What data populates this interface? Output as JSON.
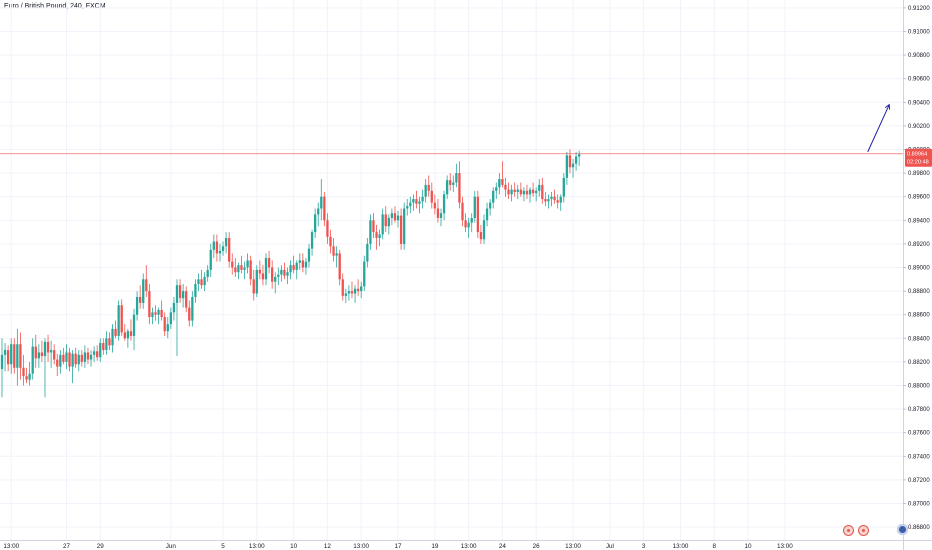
{
  "header": {
    "symbol_title": "Euro / British Pound, 240, FXCM"
  },
  "chart_data": {
    "type": "candlestick",
    "title": "Euro / British Pound, 240, FXCM",
    "y_axis_ticks": [
      "0.91200",
      "0.91000",
      "0.90800",
      "0.90600",
      "0.90400",
      "0.90200",
      "0.90000",
      "0.89800",
      "0.89600",
      "0.89400",
      "0.89200",
      "0.89000",
      "0.88800",
      "0.88600",
      "0.88400",
      "0.88200",
      "0.88000",
      "0.87800",
      "0.87600",
      "0.87400",
      "0.87200",
      "0.87000",
      "0.86800"
    ],
    "y_tick_values": [
      0.912,
      0.91,
      0.908,
      0.906,
      0.904,
      0.902,
      0.9,
      0.898,
      0.896,
      0.894,
      0.892,
      0.89,
      0.888,
      0.886,
      0.884,
      0.882,
      0.88,
      0.878,
      0.876,
      0.874,
      0.872,
      0.87,
      0.868
    ],
    "ylim": [
      0.8675,
      0.9125
    ],
    "x_axis_labels": [
      "13:00",
      "27",
      "29",
      "Jun",
      "5",
      "13:00",
      "10",
      "12",
      "13:00",
      "17",
      "19",
      "13:00",
      "24",
      "26",
      "13:00",
      "Jul",
      "3",
      "13:00",
      "8",
      "10",
      "13:00"
    ],
    "x_label_positions": [
      3,
      21,
      32,
      55,
      72,
      83,
      95,
      106,
      117,
      129,
      141,
      152,
      163,
      174,
      186,
      198,
      209,
      221,
      232,
      243,
      255
    ],
    "current_price": {
      "price_label": "0.89964",
      "countdown_label": "02:20:48",
      "value": 0.89964
    },
    "annotation_arrow": {
      "from": {
        "bar": 282,
        "price": 0.8998
      },
      "to": {
        "bar": 289,
        "price": 0.9038
      }
    },
    "candles": [
      [
        0.8814,
        0.884,
        0.879,
        0.8826
      ],
      [
        0.8826,
        0.8836,
        0.8812,
        0.883
      ],
      [
        0.883,
        0.8834,
        0.8812,
        0.8818
      ],
      [
        0.8818,
        0.884,
        0.881,
        0.8835
      ],
      [
        0.8835,
        0.884,
        0.881,
        0.8815
      ],
      [
        0.8815,
        0.8848,
        0.88,
        0.8835
      ],
      [
        0.8835,
        0.8845,
        0.8805,
        0.8815
      ],
      [
        0.8815,
        0.8826,
        0.88,
        0.8808
      ],
      [
        0.8808,
        0.8815,
        0.8802,
        0.8805
      ],
      [
        0.8805,
        0.882,
        0.88,
        0.881
      ],
      [
        0.881,
        0.884,
        0.8805,
        0.8833
      ],
      [
        0.8833,
        0.8843,
        0.8815,
        0.8823
      ],
      [
        0.8823,
        0.8835,
        0.8815,
        0.8828
      ],
      [
        0.8828,
        0.8838,
        0.882,
        0.8825
      ],
      [
        0.8825,
        0.884,
        0.879,
        0.8837
      ],
      [
        0.8837,
        0.8843,
        0.882,
        0.8828
      ],
      [
        0.8828,
        0.8838,
        0.8815,
        0.883
      ],
      [
        0.883,
        0.8835,
        0.8818,
        0.8822
      ],
      [
        0.8822,
        0.8827,
        0.8808,
        0.8816
      ],
      [
        0.8816,
        0.883,
        0.881,
        0.8826
      ],
      [
        0.8826,
        0.8832,
        0.8818,
        0.882
      ],
      [
        0.882,
        0.8835,
        0.8814,
        0.8828
      ],
      [
        0.8828,
        0.8832,
        0.8812,
        0.8816
      ],
      [
        0.8816,
        0.883,
        0.8802,
        0.8827
      ],
      [
        0.8827,
        0.8832,
        0.8815,
        0.8818
      ],
      [
        0.8818,
        0.883,
        0.8812,
        0.8826
      ],
      [
        0.8826,
        0.883,
        0.8816,
        0.882
      ],
      [
        0.882,
        0.8834,
        0.8815,
        0.8828
      ],
      [
        0.8828,
        0.8832,
        0.8818,
        0.8822
      ],
      [
        0.8822,
        0.883,
        0.8816,
        0.8826
      ],
      [
        0.8826,
        0.8833,
        0.882,
        0.8829
      ],
      [
        0.8829,
        0.8834,
        0.8821,
        0.8824
      ],
      [
        0.8824,
        0.884,
        0.882,
        0.8836
      ],
      [
        0.8836,
        0.884,
        0.8826,
        0.883
      ],
      [
        0.883,
        0.8846,
        0.8826,
        0.884
      ],
      [
        0.884,
        0.8845,
        0.883,
        0.8834
      ],
      [
        0.8834,
        0.8852,
        0.8828,
        0.8848
      ],
      [
        0.8848,
        0.8855,
        0.884,
        0.8842
      ],
      [
        0.8842,
        0.8872,
        0.8838,
        0.8868
      ],
      [
        0.8868,
        0.8873,
        0.8842,
        0.8845
      ],
      [
        0.8845,
        0.8852,
        0.8838,
        0.884
      ],
      [
        0.884,
        0.8848,
        0.8832,
        0.8846
      ],
      [
        0.8846,
        0.8856,
        0.8838,
        0.8842
      ],
      [
        0.8842,
        0.8865,
        0.883,
        0.886
      ],
      [
        0.886,
        0.888,
        0.8855,
        0.8875
      ],
      [
        0.8875,
        0.8885,
        0.8865,
        0.887
      ],
      [
        0.887,
        0.8895,
        0.8865,
        0.889
      ],
      [
        0.889,
        0.8902,
        0.8875,
        0.888
      ],
      [
        0.888,
        0.8886,
        0.8852,
        0.8858
      ],
      [
        0.8858,
        0.8866,
        0.8852,
        0.8862
      ],
      [
        0.8862,
        0.8868,
        0.8855,
        0.886
      ],
      [
        0.886,
        0.8866,
        0.8852,
        0.8864
      ],
      [
        0.8864,
        0.8872,
        0.8855,
        0.8858
      ],
      [
        0.8858,
        0.8862,
        0.8842,
        0.8846
      ],
      [
        0.8846,
        0.8858,
        0.884,
        0.8852
      ],
      [
        0.8852,
        0.8866,
        0.8848,
        0.8862
      ],
      [
        0.8862,
        0.8875,
        0.8855,
        0.887
      ],
      [
        0.887,
        0.889,
        0.8825,
        0.8885
      ],
      [
        0.8885,
        0.889,
        0.887,
        0.8874
      ],
      [
        0.8874,
        0.8886,
        0.8866,
        0.888
      ],
      [
        0.888,
        0.8884,
        0.8862,
        0.8866
      ],
      [
        0.8866,
        0.8872,
        0.885,
        0.8855
      ],
      [
        0.8855,
        0.888,
        0.885,
        0.8875
      ],
      [
        0.8875,
        0.889,
        0.887,
        0.8886
      ],
      [
        0.8886,
        0.8895,
        0.888,
        0.889
      ],
      [
        0.889,
        0.8898,
        0.8882,
        0.8885
      ],
      [
        0.8885,
        0.8896,
        0.888,
        0.8892
      ],
      [
        0.8892,
        0.8902,
        0.8888,
        0.8898
      ],
      [
        0.8898,
        0.892,
        0.8892,
        0.8915
      ],
      [
        0.8915,
        0.8928,
        0.8908,
        0.8922
      ],
      [
        0.8922,
        0.8928,
        0.8905,
        0.8912
      ],
      [
        0.8912,
        0.892,
        0.8905,
        0.8914
      ],
      [
        0.8914,
        0.8922,
        0.891,
        0.8918
      ],
      [
        0.8918,
        0.893,
        0.8912,
        0.8925
      ],
      [
        0.8925,
        0.893,
        0.89,
        0.8905
      ],
      [
        0.8905,
        0.8912,
        0.8894,
        0.89
      ],
      [
        0.89,
        0.8908,
        0.8892,
        0.8896
      ],
      [
        0.8896,
        0.8904,
        0.889,
        0.8902
      ],
      [
        0.8902,
        0.891,
        0.8895,
        0.8898
      ],
      [
        0.8898,
        0.8905,
        0.889,
        0.89
      ],
      [
        0.89,
        0.8912,
        0.8895,
        0.8906
      ],
      [
        0.8906,
        0.891,
        0.8885,
        0.889
      ],
      [
        0.889,
        0.8898,
        0.8872,
        0.8878
      ],
      [
        0.8878,
        0.8902,
        0.8875,
        0.8898
      ],
      [
        0.8898,
        0.8906,
        0.889,
        0.8895
      ],
      [
        0.8895,
        0.8902,
        0.8885,
        0.889
      ],
      [
        0.889,
        0.8912,
        0.8885,
        0.8908
      ],
      [
        0.8908,
        0.8914,
        0.8895,
        0.89
      ],
      [
        0.89,
        0.8906,
        0.8882,
        0.8888
      ],
      [
        0.8888,
        0.8896,
        0.8878,
        0.8892
      ],
      [
        0.8892,
        0.89,
        0.8885,
        0.8894
      ],
      [
        0.8894,
        0.8902,
        0.8888,
        0.8898
      ],
      [
        0.8898,
        0.8904,
        0.889,
        0.8893
      ],
      [
        0.8893,
        0.89,
        0.8886,
        0.8896
      ],
      [
        0.8896,
        0.8906,
        0.889,
        0.8902
      ],
      [
        0.8902,
        0.891,
        0.8895,
        0.8898
      ],
      [
        0.8898,
        0.8906,
        0.889,
        0.8904
      ],
      [
        0.8904,
        0.8912,
        0.8898,
        0.8906
      ],
      [
        0.8906,
        0.8912,
        0.8896,
        0.89
      ],
      [
        0.89,
        0.8908,
        0.8894,
        0.8905
      ],
      [
        0.8905,
        0.892,
        0.89,
        0.8916
      ],
      [
        0.8916,
        0.8932,
        0.891,
        0.893
      ],
      [
        0.893,
        0.895,
        0.8925,
        0.8945
      ],
      [
        0.8945,
        0.8955,
        0.8935,
        0.895
      ],
      [
        0.895,
        0.8975,
        0.894,
        0.896
      ],
      [
        0.896,
        0.8964,
        0.8935,
        0.894
      ],
      [
        0.894,
        0.8946,
        0.892,
        0.8926
      ],
      [
        0.8926,
        0.8932,
        0.8912,
        0.8918
      ],
      [
        0.8918,
        0.8925,
        0.8905,
        0.891
      ],
      [
        0.891,
        0.8918,
        0.89,
        0.8912
      ],
      [
        0.8912,
        0.8915,
        0.8885,
        0.889
      ],
      [
        0.889,
        0.8895,
        0.8872,
        0.8876
      ],
      [
        0.8876,
        0.8882,
        0.887,
        0.8878
      ],
      [
        0.8878,
        0.8885,
        0.8872,
        0.888
      ],
      [
        0.888,
        0.8888,
        0.8874,
        0.8878
      ],
      [
        0.8878,
        0.8885,
        0.887,
        0.8882
      ],
      [
        0.8882,
        0.889,
        0.8876,
        0.888
      ],
      [
        0.888,
        0.8888,
        0.8874,
        0.8884
      ],
      [
        0.8884,
        0.891,
        0.888,
        0.8905
      ],
      [
        0.8905,
        0.8925,
        0.89,
        0.892
      ],
      [
        0.892,
        0.8945,
        0.8915,
        0.894
      ],
      [
        0.894,
        0.8946,
        0.8925,
        0.893
      ],
      [
        0.893,
        0.8936,
        0.8915,
        0.8925
      ],
      [
        0.8925,
        0.8932,
        0.8918,
        0.8928
      ],
      [
        0.8928,
        0.895,
        0.8924,
        0.8945
      ],
      [
        0.8945,
        0.8952,
        0.893,
        0.8935
      ],
      [
        0.8935,
        0.8945,
        0.8928,
        0.8942
      ],
      [
        0.8942,
        0.895,
        0.8936,
        0.8946
      ],
      [
        0.8946,
        0.8952,
        0.8938,
        0.894
      ],
      [
        0.894,
        0.8948,
        0.8934,
        0.8944
      ],
      [
        0.8944,
        0.895,
        0.8915,
        0.892
      ],
      [
        0.892,
        0.8955,
        0.8915,
        0.895
      ],
      [
        0.895,
        0.8958,
        0.8944,
        0.8952
      ],
      [
        0.8952,
        0.896,
        0.8946,
        0.8955
      ],
      [
        0.8955,
        0.8962,
        0.8948,
        0.8958
      ],
      [
        0.8958,
        0.8965,
        0.895,
        0.8954
      ],
      [
        0.8954,
        0.896,
        0.8946,
        0.8956
      ],
      [
        0.8956,
        0.8966,
        0.895,
        0.896
      ],
      [
        0.896,
        0.8975,
        0.8955,
        0.897
      ],
      [
        0.897,
        0.8978,
        0.896,
        0.8965
      ],
      [
        0.8965,
        0.8972,
        0.895,
        0.8955
      ],
      [
        0.8955,
        0.8962,
        0.8945,
        0.895
      ],
      [
        0.895,
        0.8958,
        0.8938,
        0.8942
      ],
      [
        0.8942,
        0.895,
        0.8935,
        0.8946
      ],
      [
        0.8946,
        0.8965,
        0.894,
        0.8962
      ],
      [
        0.8962,
        0.8978,
        0.8958,
        0.8974
      ],
      [
        0.8974,
        0.898,
        0.8965,
        0.897
      ],
      [
        0.897,
        0.8978,
        0.8964,
        0.8972
      ],
      [
        0.8972,
        0.8988,
        0.8968,
        0.898
      ],
      [
        0.898,
        0.899,
        0.895,
        0.8955
      ],
      [
        0.8955,
        0.896,
        0.8935,
        0.894
      ],
      [
        0.894,
        0.8946,
        0.893,
        0.8934
      ],
      [
        0.8934,
        0.8942,
        0.8925,
        0.8938
      ],
      [
        0.8938,
        0.8946,
        0.893,
        0.8942
      ],
      [
        0.8942,
        0.8965,
        0.8938,
        0.896
      ],
      [
        0.896,
        0.8965,
        0.8925,
        0.893
      ],
      [
        0.893,
        0.8936,
        0.892,
        0.8924
      ],
      [
        0.8924,
        0.8945,
        0.892,
        0.894
      ],
      [
        0.894,
        0.8955,
        0.8935,
        0.895
      ],
      [
        0.895,
        0.8958,
        0.8944,
        0.8955
      ],
      [
        0.8955,
        0.8968,
        0.895,
        0.8965
      ],
      [
        0.8965,
        0.8972,
        0.8958,
        0.8968
      ],
      [
        0.8968,
        0.898,
        0.8962,
        0.8975
      ],
      [
        0.8975,
        0.899,
        0.8968,
        0.897
      ],
      [
        0.897,
        0.8976,
        0.896,
        0.8966
      ],
      [
        0.8966,
        0.8972,
        0.8958,
        0.8962
      ],
      [
        0.8962,
        0.897,
        0.8956,
        0.8966
      ],
      [
        0.8966,
        0.8972,
        0.896,
        0.8964
      ],
      [
        0.8964,
        0.897,
        0.8958,
        0.8966
      ],
      [
        0.8966,
        0.8972,
        0.896,
        0.8962
      ],
      [
        0.8962,
        0.8968,
        0.8956,
        0.8965
      ],
      [
        0.8965,
        0.897,
        0.8958,
        0.8962
      ],
      [
        0.8962,
        0.8968,
        0.8955,
        0.8966
      ],
      [
        0.8966,
        0.8972,
        0.896,
        0.8963
      ],
      [
        0.8963,
        0.8968,
        0.8956,
        0.8965
      ],
      [
        0.8965,
        0.8975,
        0.896,
        0.897
      ],
      [
        0.897,
        0.8976,
        0.8954,
        0.8958
      ],
      [
        0.8958,
        0.8964,
        0.8952,
        0.8956
      ],
      [
        0.8956,
        0.8962,
        0.895,
        0.8958
      ],
      [
        0.8958,
        0.8964,
        0.8952,
        0.896
      ],
      [
        0.896,
        0.8966,
        0.8954,
        0.8957
      ],
      [
        0.8957,
        0.8962,
        0.895,
        0.8955
      ],
      [
        0.8955,
        0.8962,
        0.8948,
        0.896
      ],
      [
        0.896,
        0.898,
        0.8955,
        0.8976
      ],
      [
        0.8976,
        0.8998,
        0.897,
        0.8995
      ],
      [
        0.8995,
        0.9,
        0.898,
        0.8985
      ],
      [
        0.8985,
        0.8992,
        0.8976,
        0.8988
      ],
      [
        0.8988,
        0.8998,
        0.8982,
        0.8994
      ],
      [
        0.8994,
        0.8999,
        0.8986,
        0.8996
      ]
    ]
  }
}
